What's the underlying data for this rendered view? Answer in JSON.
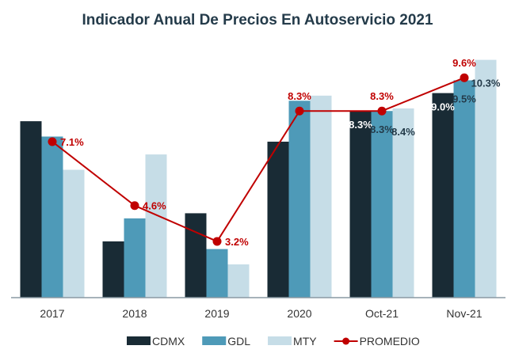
{
  "chart_data": {
    "type": "bar",
    "title": "Indicador Anual De Precios En Autoservicio 2021",
    "xlabel": "",
    "ylabel": "",
    "ylim": [
      1.0,
      11.0
    ],
    "grid": false,
    "legend_position": "bottom",
    "categories": [
      "2017",
      "2018",
      "2019",
      "2020",
      "Oct-21",
      "Nov-21"
    ],
    "series": [
      {
        "name": "CDMX",
        "kind": "bar",
        "color": "#192b35",
        "values": [
          7.9,
          3.2,
          4.3,
          7.1,
          8.3,
          9.0
        ],
        "labels": [
          null,
          null,
          null,
          null,
          "8.3%",
          "9.0%"
        ],
        "label_color": "#ffffff"
      },
      {
        "name": "GDL",
        "kind": "bar",
        "color": "#4e9ab8",
        "values": [
          7.3,
          4.1,
          2.9,
          8.7,
          8.3,
          9.5
        ],
        "labels": [
          null,
          null,
          null,
          null,
          "8.3%",
          "9.5%"
        ],
        "label_color": "#243b4a"
      },
      {
        "name": "MTY",
        "kind": "bar",
        "color": "#c6dde7",
        "values": [
          6.0,
          6.6,
          2.3,
          8.9,
          8.4,
          10.3
        ],
        "labels": [
          null,
          null,
          null,
          null,
          "8.4%",
          "10.3%"
        ],
        "label_color": "#243b4a"
      },
      {
        "name": "PROMEDIO",
        "kind": "line",
        "color": "#c00000",
        "values": [
          7.1,
          4.6,
          3.2,
          8.3,
          8.3,
          9.6
        ],
        "labels": [
          "7.1%",
          "4.6%",
          "3.2%",
          "8.3%",
          "8.3%",
          "9.6%"
        ],
        "label_color": "#c00000"
      }
    ]
  }
}
